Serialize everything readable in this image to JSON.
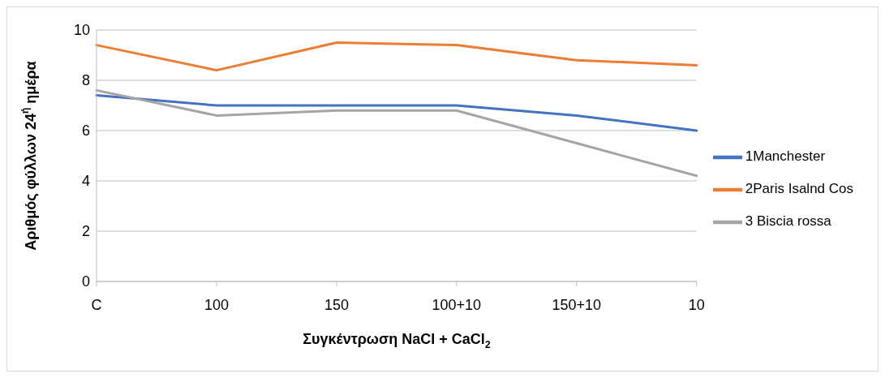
{
  "chart_data": {
    "type": "line",
    "xlabel": "Συγκέντρωση NaCl + CaCl$_{2}$",
    "ylabel": "Αριθμός φύλλων 24$^{ή}$ ημέρα",
    "categories": [
      "C",
      "100",
      "150",
      "100+10",
      "150+10",
      "10"
    ],
    "series": [
      {
        "name": "1Manchester",
        "color": "#4472c4",
        "values": [
          7.4,
          7.0,
          7.0,
          7.0,
          6.6,
          6.0
        ]
      },
      {
        "name": "2Paris Isalnd Cos",
        "color": "#ed7d31",
        "values": [
          9.4,
          8.4,
          9.5,
          9.4,
          8.8,
          8.6
        ]
      },
      {
        "name": "3 Biscia rossa",
        "color": "#a5a5a5",
        "values": [
          7.6,
          6.6,
          6.8,
          6.8,
          5.5,
          4.2
        ]
      }
    ],
    "ylim": [
      0,
      10
    ],
    "yticks": [
      0,
      2,
      4,
      6,
      8,
      10
    ],
    "grid": "y",
    "legend": "right",
    "marker": "none",
    "line_style": "solid"
  }
}
